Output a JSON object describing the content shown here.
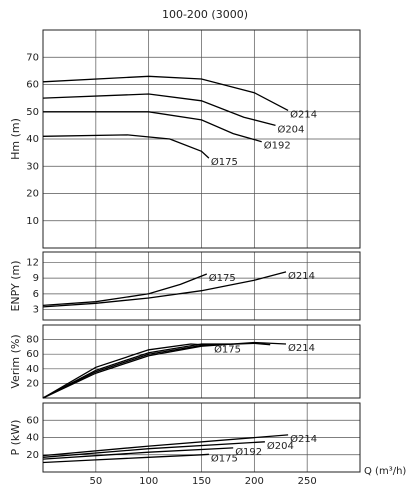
{
  "chart_data": [
    {
      "type": "line",
      "title": "100-200 (3000)",
      "ylabel": "Hm (m)",
      "xlim": [
        0,
        300
      ],
      "xticks": [
        50,
        100,
        150,
        200,
        250
      ],
      "ylim": [
        0,
        80
      ],
      "yticks": [
        10,
        20,
        30,
        40,
        50,
        60,
        70
      ],
      "grid": true,
      "series": [
        {
          "name": "Ø214",
          "color": "#000000",
          "x": [
            0,
            100,
            150,
            200,
            232
          ],
          "values": [
            61,
            63,
            62,
            57,
            50.5
          ]
        },
        {
          "name": "Ø204",
          "color": "#000000",
          "x": [
            0,
            100,
            150,
            190,
            220
          ],
          "values": [
            55,
            56.5,
            54,
            48,
            45
          ]
        },
        {
          "name": "Ø192",
          "color": "#000000",
          "x": [
            0,
            100,
            150,
            180,
            207
          ],
          "values": [
            50,
            50,
            47,
            42,
            39
          ]
        },
        {
          "name": "Ø175",
          "color": "#000000",
          "x": [
            0,
            80,
            120,
            150,
            157
          ],
          "values": [
            41,
            41.5,
            40,
            35.5,
            33
          ]
        }
      ]
    },
    {
      "type": "line",
      "ylabel": "ENPY (m)",
      "xlim": [
        0,
        300
      ],
      "xticks": [
        50,
        100,
        150,
        200,
        250
      ],
      "ylim": [
        1,
        14
      ],
      "yticks": [
        3,
        6,
        9,
        12
      ],
      "grid": true,
      "series": [
        {
          "name": "Ø175",
          "color": "#000000",
          "x": [
            0,
            50,
            100,
            130,
            155
          ],
          "values": [
            3.8,
            4.5,
            6,
            7.8,
            9.8
          ]
        },
        {
          "name": "Ø214",
          "color": "#000000",
          "x": [
            0,
            50,
            100,
            150,
            200,
            230
          ],
          "values": [
            3.5,
            4.2,
            5.2,
            6.6,
            8.6,
            10.2
          ]
        }
      ]
    },
    {
      "type": "line",
      "ylabel": "Verim (%)",
      "xlim": [
        0,
        300
      ],
      "xticks": [
        50,
        100,
        150,
        200,
        250
      ],
      "ylim": [
        0,
        100
      ],
      "yticks": [
        20,
        40,
        60,
        80
      ],
      "grid": true,
      "series": [
        {
          "name": "Ø175",
          "color": "#000000",
          "x": [
            0,
            50,
            100,
            140,
            160
          ],
          "values": [
            0,
            42,
            66,
            74,
            72
          ]
        },
        {
          "color": "#000000",
          "x": [
            0,
            50,
            100,
            150,
            180
          ],
          "values": [
            0,
            38,
            62,
            74,
            74
          ]
        },
        {
          "color": "#000000",
          "x": [
            0,
            50,
            100,
            150,
            200,
            215
          ],
          "values": [
            0,
            36,
            60,
            72,
            75,
            73
          ]
        },
        {
          "name": "Ø214",
          "color": "#000000",
          "x": [
            0,
            50,
            100,
            150,
            200,
            230
          ],
          "values": [
            0,
            34,
            58,
            71,
            76,
            74
          ]
        }
      ]
    },
    {
      "type": "line",
      "ylabel": "P (kW)",
      "xlabel": "Q (m³/h)",
      "xlim": [
        0,
        300
      ],
      "xticks": [
        50,
        100,
        150,
        200,
        250
      ],
      "ylim": [
        0,
        80
      ],
      "yticks": [
        20,
        40,
        60
      ],
      "grid": true,
      "series": [
        {
          "name": "Ø175",
          "color": "#000000",
          "x": [
            0,
            50,
            100,
            150,
            157
          ],
          "values": [
            11,
            14,
            17,
            20,
            20.5
          ]
        },
        {
          "name": "Ø192",
          "color": "#000000",
          "x": [
            0,
            100,
            180
          ],
          "values": [
            15,
            23,
            28
          ]
        },
        {
          "name": "Ø204",
          "color": "#000000",
          "x": [
            0,
            100,
            210
          ],
          "values": [
            17,
            27,
            35
          ]
        },
        {
          "name": "Ø214",
          "color": "#000000",
          "x": [
            0,
            100,
            232
          ],
          "values": [
            19,
            30,
            43
          ]
        }
      ]
    }
  ]
}
